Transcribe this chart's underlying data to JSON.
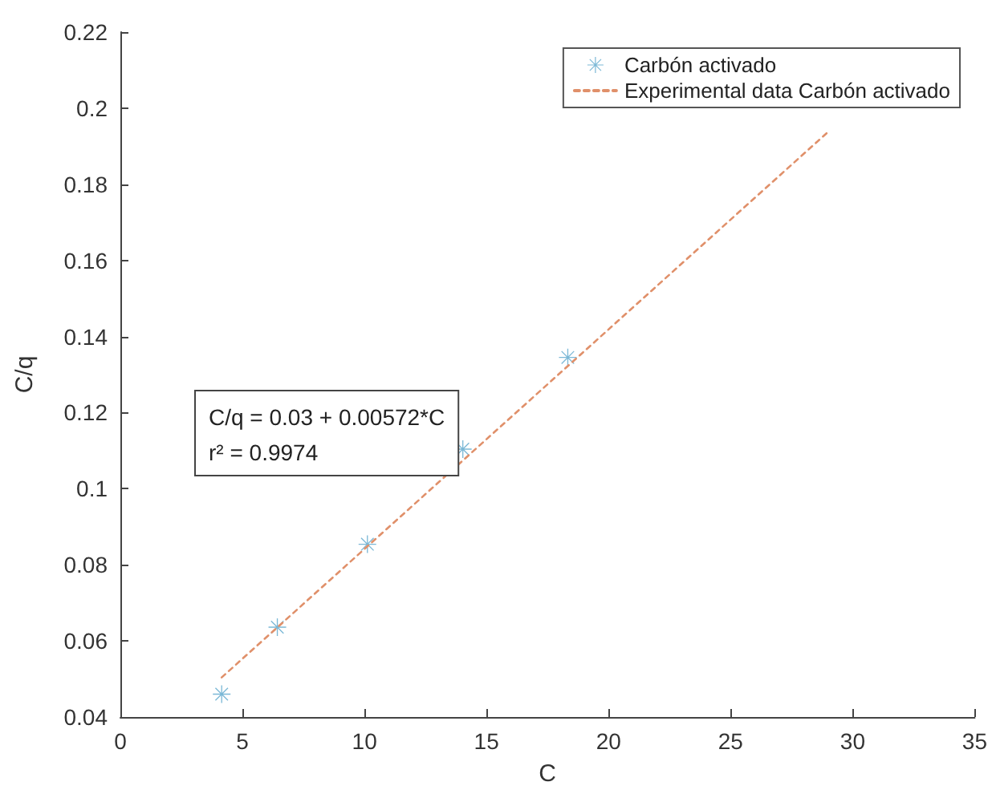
{
  "chart_data": {
    "type": "scatter",
    "xlabel": "C",
    "ylabel": "C/q",
    "annotations": [
      "C/q = 0.03 + 0.00572*C",
      "r² = 0.9974"
    ],
    "series": [
      {
        "name": "Carbón activado",
        "color": "#5aa6cc",
        "marker": "star",
        "x": [
          4.15,
          6.43,
          10.12,
          14.03,
          18.33
        ],
        "values": [
          0.046,
          0.0636,
          0.0854,
          0.1104,
          0.1345
        ]
      },
      {
        "name": "Experimental data Carbón activado",
        "type": "line",
        "color": "#e0906a",
        "line_style": "dotted",
        "marker": "none",
        "x": [
          4.15,
          29
        ],
        "values": [
          0.0504,
          0.1938
        ]
      }
    ],
    "xlim": [
      0,
      35
    ],
    "xticks": [
      0,
      5,
      10,
      15,
      20,
      25,
      30,
      35
    ],
    "ylim": [
      0.04,
      0.22
    ],
    "yticks": [
      0.04,
      0.06,
      0.08,
      0.1,
      0.12,
      0.14,
      0.16,
      0.18,
      0.2,
      0.22
    ],
    "grid": false,
    "legend": "top right"
  }
}
